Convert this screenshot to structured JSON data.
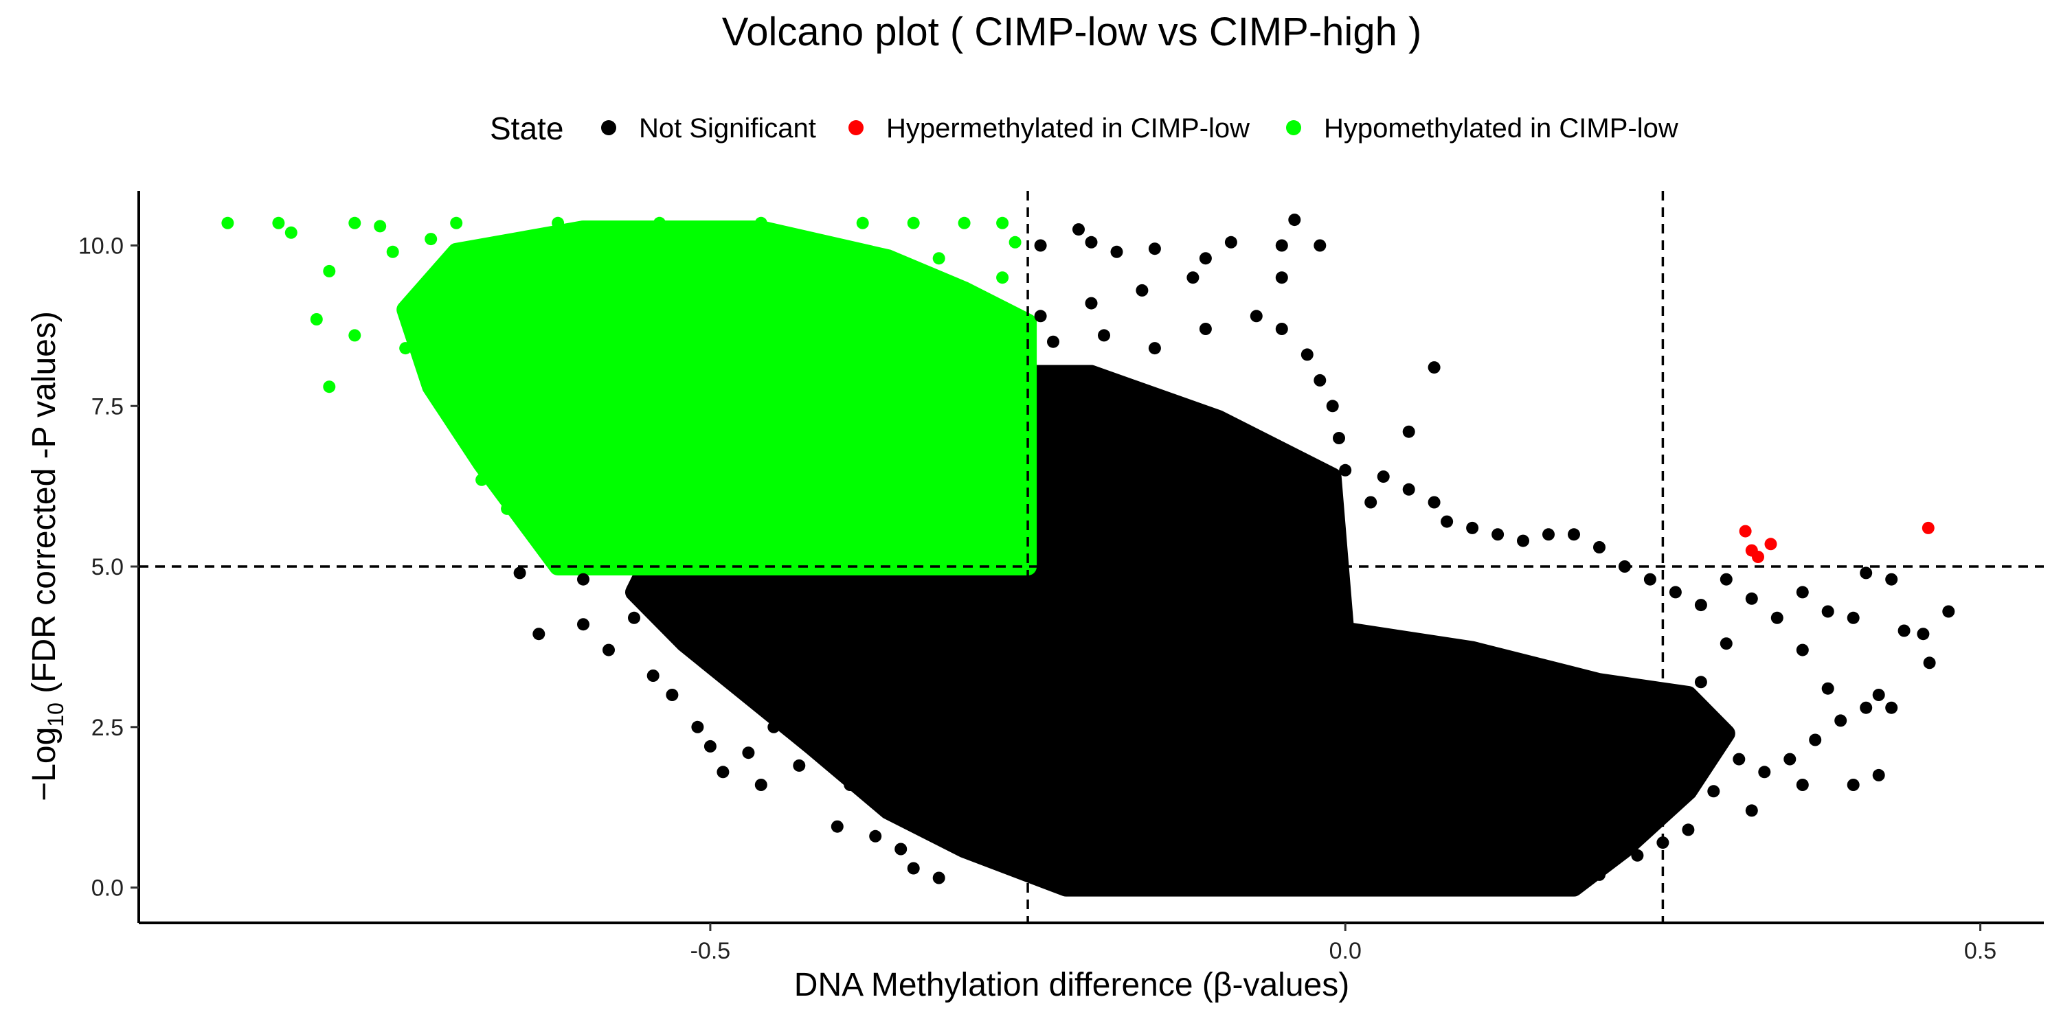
{
  "chart_data": {
    "type": "scatter",
    "title": "Volcano plot ( CIMP-low vs CIMP-high )",
    "xlabel": "DNA Methylation difference (β-values)",
    "ylabel": {
      "prefix": "−Log",
      "subscript": "10",
      "suffix": " (FDR corrected -P values)"
    },
    "xlim": [
      -0.95,
      0.55
    ],
    "ylim": [
      -0.55,
      10.85
    ],
    "x_ticks": [
      -0.5,
      0.0,
      0.5
    ],
    "x_tick_labels": [
      "-0.5",
      "0.0",
      "0.5"
    ],
    "y_ticks": [
      0.0,
      2.5,
      5.0,
      7.5,
      10.0
    ],
    "y_tick_labels": [
      "0.0",
      "2.5",
      "5.0",
      "7.5",
      "10.0"
    ],
    "thresholds": {
      "x": [
        -0.25,
        0.25
      ],
      "y": 5.0
    },
    "grid": false,
    "legend": {
      "title": "State",
      "position": "top",
      "entries": [
        {
          "label": "Not Significant",
          "color": "#000000"
        },
        {
          "label": "Hypermethylated in CIMP-low",
          "color": "#ff0000"
        },
        {
          "label": "Hypomethylated in CIMP-low",
          "color": "#00ff00"
        }
      ]
    },
    "series": [
      {
        "name": "Hypermethylated in CIMP-low",
        "color": "#ff0000",
        "points": [
          [
            0.315,
            5.55
          ],
          [
            0.32,
            5.25
          ],
          [
            0.325,
            5.15
          ],
          [
            0.335,
            5.35
          ],
          [
            0.459,
            5.6
          ]
        ]
      },
      {
        "name": "Hypomethylated in CIMP-low",
        "color": "#00ff00",
        "points": [
          [
            -0.88,
            10.35
          ],
          [
            -0.83,
            10.2
          ],
          [
            -0.8,
            9.6
          ],
          [
            -0.81,
            8.85
          ],
          [
            -0.8,
            7.8
          ],
          [
            -0.78,
            8.6
          ],
          [
            -0.76,
            10.3
          ],
          [
            -0.75,
            9.9
          ],
          [
            -0.74,
            8.4
          ],
          [
            -0.73,
            9.2
          ],
          [
            -0.72,
            10.1
          ],
          [
            -0.7,
            7.6
          ],
          [
            -0.69,
            6.9
          ],
          [
            -0.68,
            6.35
          ],
          [
            -0.66,
            5.9
          ],
          [
            -0.63,
            5.95
          ],
          [
            -0.61,
            5.85
          ],
          [
            -0.62,
            5.15
          ],
          [
            -0.59,
            5.5
          ],
          [
            -0.56,
            5.3
          ],
          [
            -0.52,
            5.1
          ],
          [
            -0.48,
            5.2
          ],
          [
            -0.44,
            5.05
          ],
          [
            -0.4,
            5.1
          ],
          [
            -0.34,
            5.05
          ],
          [
            -0.3,
            5.1
          ],
          [
            -0.27,
            5.05
          ],
          [
            -0.3,
            10.35
          ],
          [
            -0.27,
            10.35
          ],
          [
            -0.26,
            10.05
          ],
          [
            -0.27,
            9.5
          ],
          [
            -0.28,
            8.8
          ],
          [
            -0.26,
            8.6
          ],
          [
            -0.27,
            7.8
          ],
          [
            -0.26,
            7.3
          ],
          [
            -0.26,
            6.4
          ],
          [
            -0.26,
            5.6
          ],
          [
            -0.32,
            9.8
          ],
          [
            -0.36,
            9.5
          ],
          [
            -0.4,
            9.2
          ],
          [
            -0.44,
            9.8
          ],
          [
            -0.5,
            9.4
          ],
          [
            -0.56,
            9.9
          ],
          [
            -0.6,
            9.1
          ],
          [
            -0.64,
            9.6
          ],
          [
            -0.68,
            8.9
          ],
          [
            -0.71,
            9.5
          ],
          [
            -0.65,
            8.2
          ],
          [
            -0.6,
            8.1
          ],
          [
            -0.55,
            8.3
          ],
          [
            -0.5,
            8.0
          ],
          [
            -0.45,
            7.9
          ],
          [
            -0.4,
            7.8
          ],
          [
            -0.35,
            7.7
          ],
          [
            -0.3,
            7.6
          ],
          [
            -0.62,
            7.2
          ],
          [
            -0.56,
            7.0
          ],
          [
            -0.5,
            6.8
          ],
          [
            -0.44,
            6.7
          ],
          [
            -0.38,
            6.5
          ],
          [
            -0.32,
            6.4
          ],
          [
            -0.66,
            6.8
          ],
          [
            -0.58,
            6.2
          ],
          [
            -0.52,
            6.0
          ],
          [
            -0.46,
            5.8
          ],
          [
            -0.4,
            5.7
          ],
          [
            -0.34,
            5.6
          ],
          [
            -0.28,
            5.5
          ],
          [
            -0.84,
            10.35
          ],
          [
            -0.78,
            10.35
          ],
          [
            -0.7,
            10.35
          ],
          [
            -0.62,
            10.35
          ],
          [
            -0.54,
            10.35
          ],
          [
            -0.46,
            10.35
          ],
          [
            -0.38,
            10.35
          ],
          [
            -0.34,
            10.35
          ]
        ]
      },
      {
        "name": "Not Significant",
        "color": "#000000",
        "points": [
          [
            -0.635,
            3.95
          ],
          [
            -0.6,
            4.1
          ],
          [
            -0.58,
            3.7
          ],
          [
            -0.56,
            4.2
          ],
          [
            -0.545,
            3.3
          ],
          [
            -0.53,
            3.0
          ],
          [
            -0.51,
            2.5
          ],
          [
            -0.5,
            2.2
          ],
          [
            -0.49,
            1.8
          ],
          [
            -0.47,
            2.1
          ],
          [
            -0.46,
            1.6
          ],
          [
            -0.45,
            2.5
          ],
          [
            -0.43,
            1.9
          ],
          [
            -0.4,
            0.95
          ],
          [
            -0.39,
            1.6
          ],
          [
            -0.37,
            0.8
          ],
          [
            -0.35,
            0.6
          ],
          [
            -0.34,
            0.3
          ],
          [
            -0.32,
            0.15
          ],
          [
            -0.55,
            4.7
          ],
          [
            -0.6,
            4.8
          ],
          [
            -0.65,
            4.9
          ],
          [
            -0.5,
            4.6
          ],
          [
            -0.24,
            10.0
          ],
          [
            -0.21,
            10.25
          ],
          [
            -0.2,
            10.05
          ],
          [
            -0.18,
            9.9
          ],
          [
            -0.15,
            9.95
          ],
          [
            -0.11,
            9.8
          ],
          [
            -0.09,
            10.05
          ],
          [
            -0.05,
            10.0
          ],
          [
            -0.04,
            10.4
          ],
          [
            -0.02,
            10.0
          ],
          [
            -0.05,
            9.5
          ],
          [
            -0.12,
            9.5
          ],
          [
            -0.16,
            9.3
          ],
          [
            -0.2,
            9.1
          ],
          [
            -0.24,
            8.9
          ],
          [
            -0.23,
            8.5
          ],
          [
            -0.19,
            8.6
          ],
          [
            -0.15,
            8.4
          ],
          [
            -0.11,
            8.7
          ],
          [
            -0.07,
            8.9
          ],
          [
            -0.05,
            8.7
          ],
          [
            -0.03,
            8.3
          ],
          [
            -0.02,
            7.9
          ],
          [
            -0.01,
            7.5
          ],
          [
            -0.005,
            7.0
          ],
          [
            0.0,
            6.5
          ],
          [
            0.07,
            8.1
          ],
          [
            0.05,
            7.1
          ],
          [
            0.03,
            6.4
          ],
          [
            0.02,
            6.0
          ],
          [
            0.05,
            6.2
          ],
          [
            0.07,
            6.0
          ],
          [
            0.08,
            5.7
          ],
          [
            0.1,
            5.6
          ],
          [
            0.12,
            5.5
          ],
          [
            0.14,
            5.4
          ],
          [
            0.16,
            5.5
          ],
          [
            0.18,
            5.5
          ],
          [
            0.2,
            5.3
          ],
          [
            0.22,
            5.0
          ],
          [
            0.24,
            4.8
          ],
          [
            0.26,
            4.6
          ],
          [
            0.28,
            4.4
          ],
          [
            0.3,
            4.8
          ],
          [
            0.32,
            4.5
          ],
          [
            0.34,
            4.2
          ],
          [
            0.36,
            4.6
          ],
          [
            0.38,
            4.3
          ],
          [
            0.4,
            4.2
          ],
          [
            0.41,
            4.9
          ],
          [
            0.43,
            4.8
          ],
          [
            0.44,
            4.0
          ],
          [
            0.46,
            3.5
          ],
          [
            0.455,
            3.95
          ],
          [
            0.475,
            4.3
          ],
          [
            0.42,
            3.0
          ],
          [
            0.41,
            2.8
          ],
          [
            0.39,
            2.6
          ],
          [
            0.37,
            2.3
          ],
          [
            0.35,
            2.0
          ],
          [
            0.33,
            1.8
          ],
          [
            0.31,
            2.0
          ],
          [
            0.32,
            1.2
          ],
          [
            0.29,
            1.5
          ],
          [
            0.27,
            0.9
          ],
          [
            0.25,
            0.7
          ],
          [
            0.23,
            0.5
          ],
          [
            0.2,
            0.2
          ],
          [
            0.36,
            1.6
          ],
          [
            0.4,
            1.6
          ],
          [
            0.42,
            1.75
          ],
          [
            0.43,
            2.8
          ],
          [
            0.38,
            3.1
          ],
          [
            0.36,
            3.7
          ],
          [
            0.28,
            3.2
          ],
          [
            0.26,
            2.8
          ],
          [
            0.3,
            3.8
          ]
        ]
      }
    ],
    "dense_regions": [
      {
        "series": "Not Significant",
        "polygon": [
          [
            -0.55,
            5.0
          ],
          [
            -0.25,
            5.0
          ],
          [
            -0.25,
            8.0
          ],
          [
            -0.2,
            8.0
          ],
          [
            -0.1,
            7.3
          ],
          [
            -0.01,
            6.4
          ],
          [
            0.0,
            4.0
          ],
          [
            0.1,
            3.7
          ],
          [
            0.2,
            3.2
          ],
          [
            0.27,
            3.0
          ],
          [
            0.3,
            2.4
          ],
          [
            0.27,
            1.5
          ],
          [
            0.22,
            0.6
          ],
          [
            0.18,
            0.0
          ],
          [
            -0.22,
            0.0
          ],
          [
            -0.3,
            0.6
          ],
          [
            -0.36,
            1.2
          ],
          [
            -0.42,
            2.2
          ],
          [
            -0.47,
            3.0
          ],
          [
            -0.52,
            3.8
          ],
          [
            -0.56,
            4.6
          ]
        ]
      },
      {
        "series": "Hypomethylated in CIMP-low",
        "polygon": [
          [
            -0.62,
            5.0
          ],
          [
            -0.25,
            5.0
          ],
          [
            -0.25,
            8.8
          ],
          [
            -0.3,
            9.3
          ],
          [
            -0.36,
            9.8
          ],
          [
            -0.46,
            10.25
          ],
          [
            -0.6,
            10.25
          ],
          [
            -0.7,
            9.9
          ],
          [
            -0.74,
            9.0
          ],
          [
            -0.72,
            7.8
          ],
          [
            -0.68,
            6.6
          ]
        ]
      }
    ]
  }
}
